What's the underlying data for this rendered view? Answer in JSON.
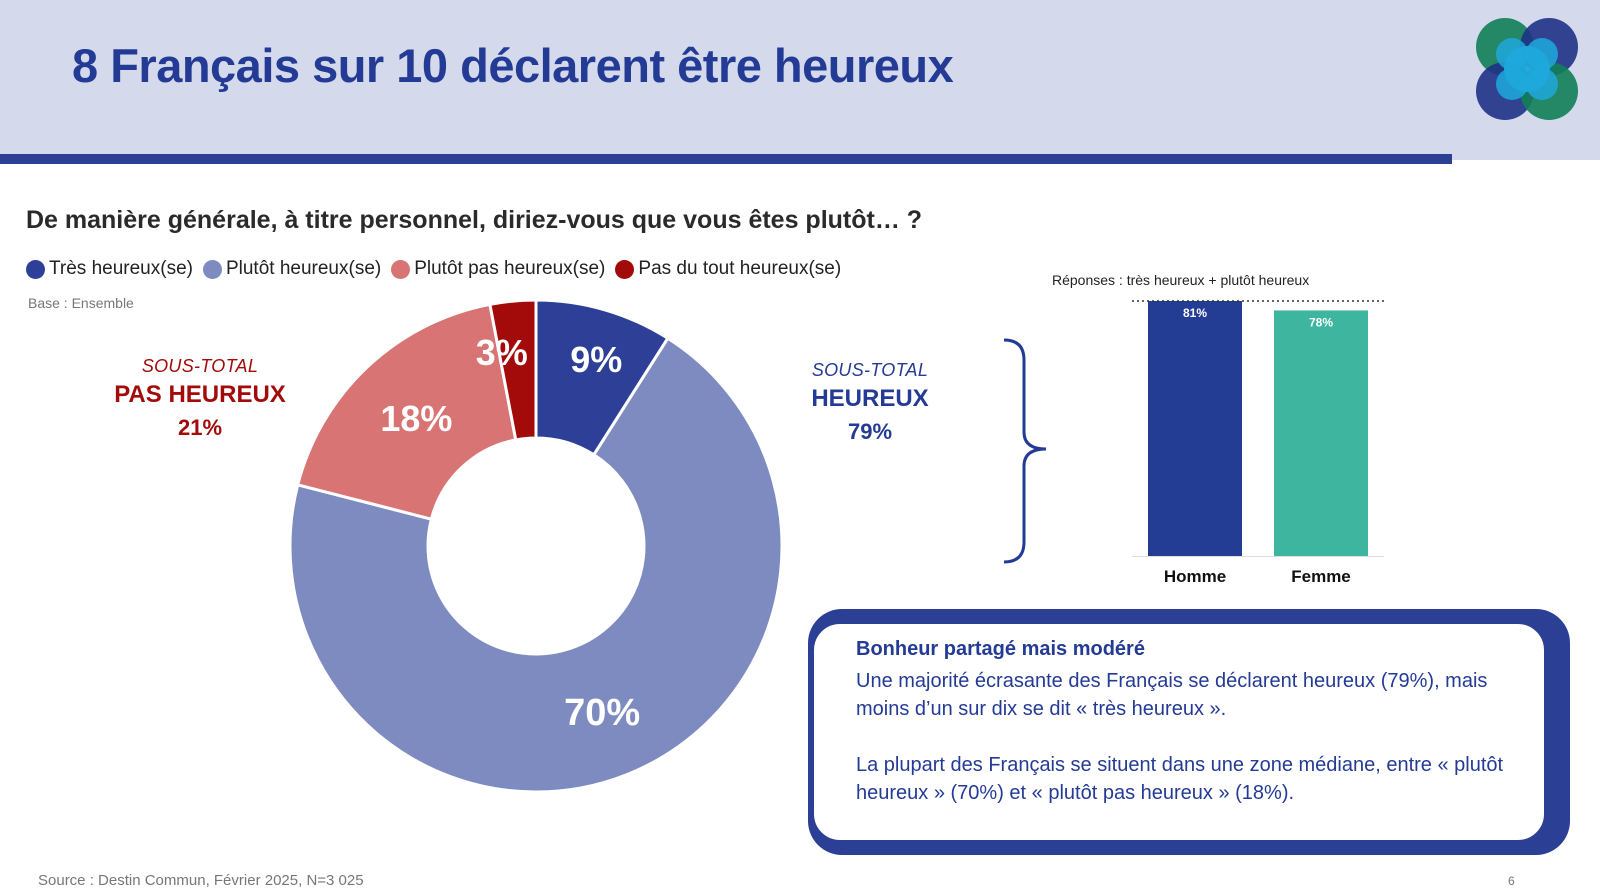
{
  "header": {
    "title": "8 Français sur 10 déclarent être heureux"
  },
  "question": "De manière générale, à titre personnel, diriez-vous que vous êtes plutôt… ?",
  "base": "Base : Ensemble",
  "colors": {
    "tres_heureux": "#2e3f97",
    "plutot_heureux": "#7e8bc0",
    "plutot_pas_heureux": "#d87474",
    "pas_du_tout": "#a30b0b",
    "accent": "#243b95",
    "homme": "#233c94",
    "femme": "#3db59f"
  },
  "subtotals": {
    "pas_heureux": {
      "caption": "SOUS-TOTAL",
      "label": "PAS HEUREUX",
      "value": "21%"
    },
    "heureux": {
      "caption": "SOUS-TOTAL",
      "label": "HEUREUX",
      "value": "79%"
    }
  },
  "bar_chart_title": "Réponses : très heureux + plutôt heureux",
  "insight": {
    "title": "Bonheur partagé mais modéré",
    "p1": "Une majorité écrasante des Français se déclarent heureux (79%), mais moins d’un sur dix se dit « très heureux ».",
    "p2": "La plupart des Français se situent dans une zone médiane, entre « plutôt heureux » (70%) et « plutôt pas heureux » (18%)."
  },
  "source": "Source : Destin Commun, Février 2025, N=3 025",
  "page_number": "6",
  "chart_data": [
    {
      "type": "pie",
      "categories": [
        "Très heureux(se)",
        "Plutôt heureux(se)",
        "Plutôt pas heureux(se)",
        "Pas du tout heureux(se)"
      ],
      "values": [
        9,
        70,
        18,
        3
      ],
      "labels": [
        "9%",
        "70%",
        "18%",
        "3%"
      ],
      "legend_position": "top-left"
    },
    {
      "type": "bar",
      "title": "Réponses : très heureux + plutôt heureux",
      "categories": [
        "Homme",
        "Femme"
      ],
      "values": [
        81,
        78
      ],
      "labels": [
        "81%",
        "78%"
      ]
    }
  ]
}
